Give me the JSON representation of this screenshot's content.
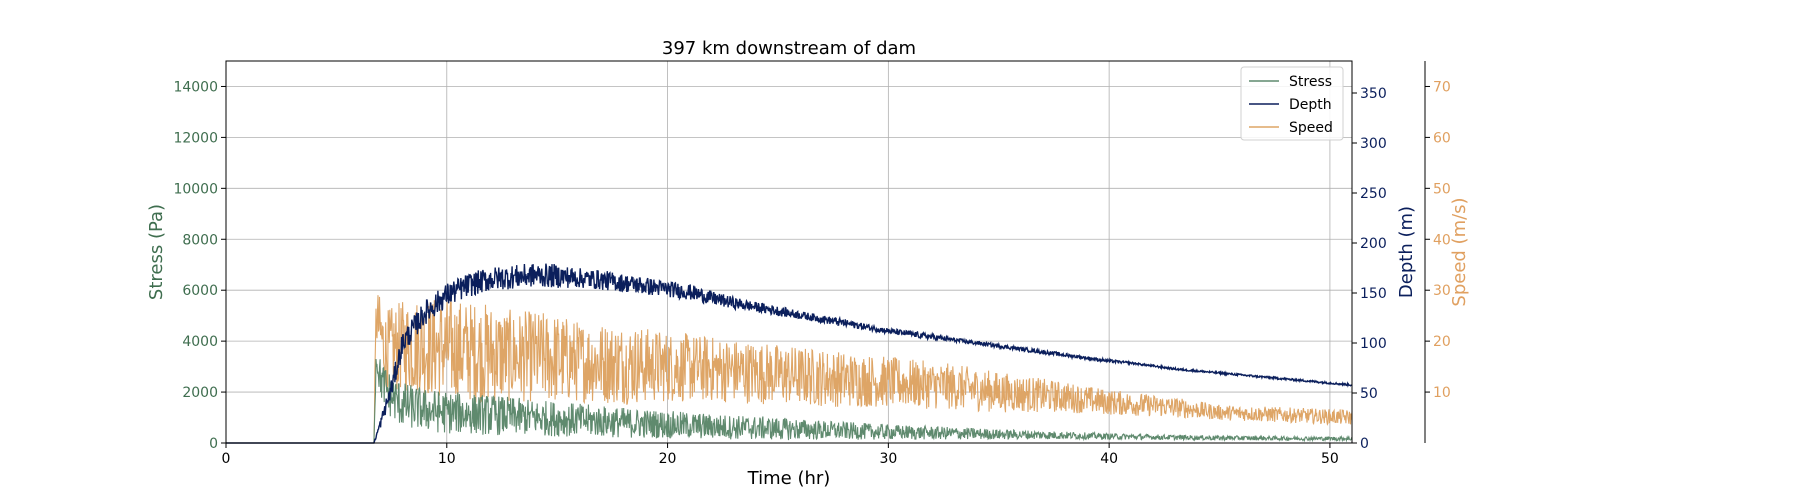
{
  "chart_data": {
    "type": "line",
    "title": "397 km downstream of dam",
    "xlabel": "Time (hr)",
    "xlim": [
      0,
      51
    ],
    "xticks": [
      0,
      10,
      20,
      30,
      40,
      50
    ],
    "grid": true,
    "legend_position": "top-right",
    "axes": {
      "stress": {
        "label": "Stress (Pa)",
        "color": "#3f6e4f",
        "ylim": [
          0,
          15000
        ],
        "ticks": [
          0,
          2000,
          4000,
          6000,
          8000,
          10000,
          12000,
          14000
        ]
      },
      "depth": {
        "label": "Depth (m)",
        "color": "#0b1f5c",
        "ylim": [
          0,
          382
        ],
        "ticks": [
          0,
          50,
          100,
          150,
          200,
          250,
          300,
          350
        ]
      },
      "speed": {
        "label": "Speed (m/s)",
        "color": "#e0a060",
        "ylim": [
          0,
          75
        ],
        "ticks": [
          10,
          20,
          30,
          40,
          50,
          60,
          70
        ]
      }
    },
    "series": [
      {
        "name": "Stress",
        "axis": "stress",
        "color": "#5f8a6e",
        "x": [
          0,
          6.7,
          6.8,
          7.0,
          7.5,
          8,
          9,
          10,
          11,
          12,
          13,
          14,
          15,
          16,
          18,
          20,
          22,
          25,
          28,
          30,
          33,
          35,
          38,
          40,
          43,
          45,
          48,
          51
        ],
        "y": [
          0,
          0,
          3400,
          2500,
          1800,
          1500,
          1300,
          1200,
          1150,
          1100,
          1050,
          1000,
          950,
          900,
          800,
          720,
          650,
          560,
          480,
          430,
          380,
          340,
          300,
          260,
          220,
          200,
          180,
          170
        ],
        "noise": [
          0,
          0,
          600,
          800,
          900,
          900,
          850,
          850,
          800,
          800,
          750,
          700,
          700,
          650,
          600,
          550,
          500,
          450,
          350,
          300,
          250,
          200,
          150,
          120,
          100,
          90,
          80,
          80
        ]
      },
      {
        "name": "Depth",
        "axis": "depth",
        "color": "#0b1f5c",
        "x": [
          0,
          6.7,
          7.0,
          7.5,
          8,
          9,
          10,
          11,
          12,
          13,
          14,
          15,
          16,
          17,
          18,
          19,
          20,
          21,
          22,
          23,
          24,
          25,
          26,
          27,
          28,
          29,
          30,
          31,
          32,
          33,
          34,
          35,
          36,
          37,
          38,
          39,
          40,
          41,
          42,
          43,
          44,
          45,
          46,
          47,
          48,
          49,
          50,
          51
        ],
        "y": [
          0,
          0,
          20,
          55,
          100,
          130,
          148,
          158,
          164,
          166,
          168,
          167,
          165,
          163,
          160,
          157,
          154,
          151,
          145,
          140,
          136,
          132,
          128,
          124,
          120,
          116,
          112,
          109,
          106,
          103,
          100,
          97,
          94,
          91,
          88,
          85,
          82,
          80,
          77,
          74,
          72,
          70,
          68,
          66,
          64,
          62,
          60,
          58
        ],
        "noise": [
          0,
          0,
          5,
          10,
          12,
          12,
          12,
          12,
          12,
          12,
          12,
          12,
          10,
          10,
          9,
          9,
          8,
          8,
          7,
          6,
          5,
          5,
          4,
          4,
          4,
          3,
          3,
          3,
          3,
          2,
          2,
          2,
          2,
          2,
          2,
          1.5,
          1.5,
          1,
          1,
          1,
          1,
          1,
          1,
          1,
          1,
          1,
          1,
          1
        ]
      },
      {
        "name": "Speed",
        "axis": "speed",
        "color": "#dea566",
        "x": [
          0,
          6.7,
          6.8,
          7.2,
          8,
          9,
          10,
          11,
          12,
          13,
          14,
          15,
          16,
          18,
          20,
          22,
          25,
          28,
          30,
          33,
          35,
          38,
          40,
          43,
          45,
          48,
          51
        ],
        "y": [
          0,
          0,
          25,
          18,
          19,
          19,
          18.5,
          18,
          17.5,
          17,
          17,
          16.5,
          16,
          15.5,
          15,
          14.5,
          13.5,
          12.5,
          12,
          11,
          10,
          9,
          8,
          7,
          6,
          5.5,
          5
        ],
        "noise": [
          0,
          0,
          6,
          8,
          9,
          10,
          10,
          10,
          10,
          9,
          9,
          9,
          8,
          8,
          7,
          6.5,
          6,
          5.5,
          5,
          4.5,
          4,
          3,
          2.5,
          2,
          1.5,
          1.5,
          1.5
        ]
      }
    ]
  }
}
